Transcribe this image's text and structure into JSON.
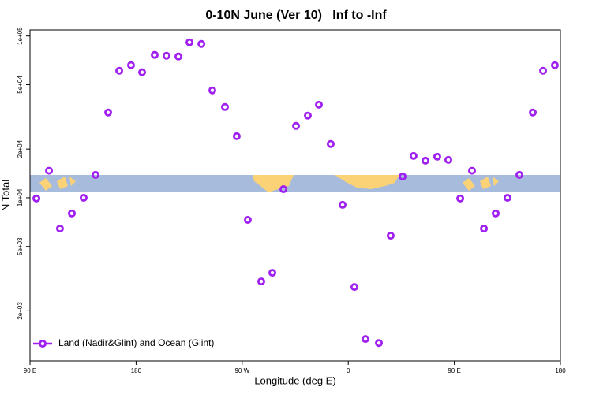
{
  "chart_data": {
    "type": "scatter",
    "title": "0-10N June (Ver 10)   Inf to -Inf",
    "xlabel": "Longitude (deg E)",
    "ylabel": "N Total",
    "x": [
      95.4,
      106.1,
      115.4,
      125.5,
      135.5,
      145.6,
      156.3,
      165.7,
      175.7,
      185.1,
      195.8,
      205.8,
      215.9,
      225.3,
      235.4,
      244.7,
      255.4,
      265.4,
      274.8,
      286.2,
      295.6,
      305.0,
      315.7,
      325.7,
      335.1,
      345.1,
      355.2,
      365.2,
      374.6,
      386.0,
      396.0,
      406.1,
      415.4,
      425.5,
      435.5,
      444.9,
      455.0,
      465.0,
      475.1,
      485.1,
      495.1,
      505.2,
      516.6,
      525.3,
      535.3
    ],
    "series": [
      {
        "name": "Land (Nadir&Glint) and Ocean (Glint)",
        "color": "#a020f0",
        "values": [
          9900,
          14700,
          6450,
          8000,
          10000,
          13850,
          33650,
          61000,
          66000,
          59700,
          76400,
          75500,
          74700,
          91400,
          89300,
          46100,
          36400,
          24000,
          7300,
          3040,
          3440,
          11300,
          27800,
          32200,
          37600,
          21500,
          9040,
          2810,
          1340,
          1265,
          5830,
          13540,
          18140,
          16950,
          17940,
          17150,
          9900,
          14700,
          6450,
          8000,
          10000,
          13850,
          33650,
          61000,
          66000
        ]
      }
    ],
    "xlim": [
      90,
      540
    ],
    "xticks": [
      {
        "value": 90,
        "label": "90 E"
      },
      {
        "value": 180,
        "label": "180"
      },
      {
        "value": 270,
        "label": "90 W"
      },
      {
        "value": 360,
        "label": "0"
      },
      {
        "value": 450,
        "label": "90 E"
      },
      {
        "value": 540,
        "label": "180"
      }
    ],
    "ylim": [
      980,
      109000
    ],
    "yscale": "log",
    "yticks": [
      {
        "value": 2000,
        "label": "2e+03"
      },
      {
        "value": 5000,
        "label": "5e+03"
      },
      {
        "value": 10000,
        "label": "1e+04"
      },
      {
        "value": 20000,
        "label": "2e+04"
      },
      {
        "value": 50000,
        "label": "5e+04"
      },
      {
        "value": 100000,
        "label": "1e+05"
      }
    ],
    "grid": false,
    "legend": "bottom-left"
  }
}
